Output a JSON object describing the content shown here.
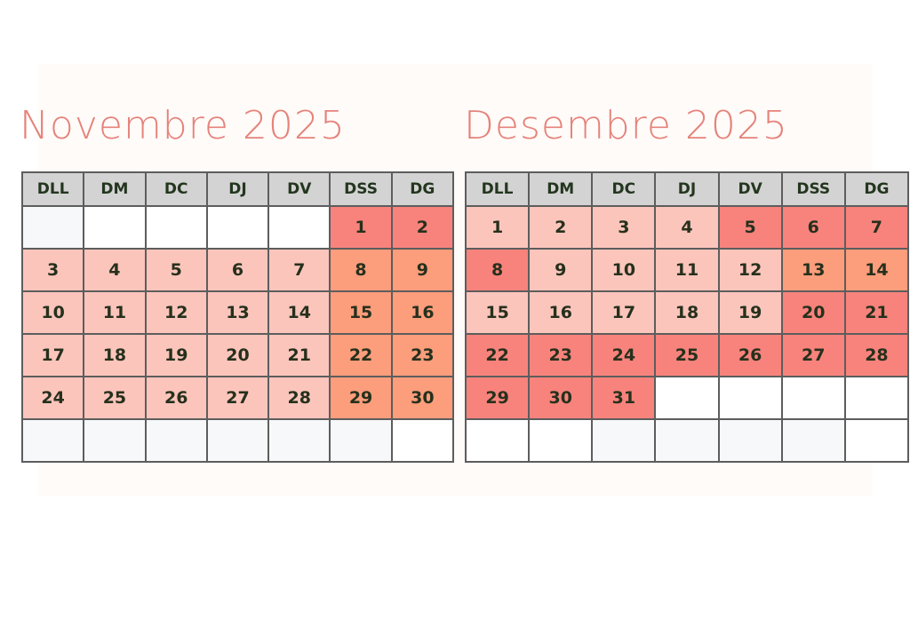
{
  "calendars": [
    {
      "title": "Novembre 2025",
      "weekdays": [
        "DLL",
        "DM",
        "DC",
        "DJ",
        "DV",
        "DSS",
        "DG"
      ],
      "weeks": [
        [
          {
            "day": "",
            "tone": "blank"
          },
          {
            "day": "",
            "tone": "empty"
          },
          {
            "day": "",
            "tone": "empty"
          },
          {
            "day": "",
            "tone": "empty"
          },
          {
            "day": "",
            "tone": "empty"
          },
          {
            "day": "1",
            "tone": "mid"
          },
          {
            "day": "2",
            "tone": "mid"
          }
        ],
        [
          {
            "day": "3",
            "tone": "light"
          },
          {
            "day": "4",
            "tone": "light"
          },
          {
            "day": "5",
            "tone": "light"
          },
          {
            "day": "6",
            "tone": "light"
          },
          {
            "day": "7",
            "tone": "light"
          },
          {
            "day": "8",
            "tone": "orange"
          },
          {
            "day": "9",
            "tone": "orange"
          }
        ],
        [
          {
            "day": "10",
            "tone": "light"
          },
          {
            "day": "11",
            "tone": "light"
          },
          {
            "day": "12",
            "tone": "light"
          },
          {
            "day": "13",
            "tone": "light"
          },
          {
            "day": "14",
            "tone": "light"
          },
          {
            "day": "15",
            "tone": "orange"
          },
          {
            "day": "16",
            "tone": "orange"
          }
        ],
        [
          {
            "day": "17",
            "tone": "light"
          },
          {
            "day": "18",
            "tone": "light"
          },
          {
            "day": "19",
            "tone": "light"
          },
          {
            "day": "20",
            "tone": "light"
          },
          {
            "day": "21",
            "tone": "light"
          },
          {
            "day": "22",
            "tone": "orange"
          },
          {
            "day": "23",
            "tone": "orange"
          }
        ],
        [
          {
            "day": "24",
            "tone": "light"
          },
          {
            "day": "25",
            "tone": "light"
          },
          {
            "day": "26",
            "tone": "light"
          },
          {
            "day": "27",
            "tone": "light"
          },
          {
            "day": "28",
            "tone": "light"
          },
          {
            "day": "29",
            "tone": "orange"
          },
          {
            "day": "30",
            "tone": "orange"
          }
        ],
        [
          {
            "day": "",
            "tone": "blank"
          },
          {
            "day": "",
            "tone": "blank"
          },
          {
            "day": "",
            "tone": "blank"
          },
          {
            "day": "",
            "tone": "blank"
          },
          {
            "day": "",
            "tone": "blank"
          },
          {
            "day": "",
            "tone": "blank"
          },
          {
            "day": "",
            "tone": "empty"
          }
        ]
      ]
    },
    {
      "title": "Desembre 2025",
      "weekdays": [
        "DLL",
        "DM",
        "DC",
        "DJ",
        "DV",
        "DSS",
        "DG"
      ],
      "weeks": [
        [
          {
            "day": "1",
            "tone": "light"
          },
          {
            "day": "2",
            "tone": "light"
          },
          {
            "day": "3",
            "tone": "light"
          },
          {
            "day": "4",
            "tone": "light"
          },
          {
            "day": "5",
            "tone": "mid"
          },
          {
            "day": "6",
            "tone": "mid"
          },
          {
            "day": "7",
            "tone": "mid"
          }
        ],
        [
          {
            "day": "8",
            "tone": "mid"
          },
          {
            "day": "9",
            "tone": "light"
          },
          {
            "day": "10",
            "tone": "light"
          },
          {
            "day": "11",
            "tone": "light"
          },
          {
            "day": "12",
            "tone": "light"
          },
          {
            "day": "13",
            "tone": "orange"
          },
          {
            "day": "14",
            "tone": "orange"
          }
        ],
        [
          {
            "day": "15",
            "tone": "light"
          },
          {
            "day": "16",
            "tone": "light"
          },
          {
            "day": "17",
            "tone": "light"
          },
          {
            "day": "18",
            "tone": "light"
          },
          {
            "day": "19",
            "tone": "light"
          },
          {
            "day": "20",
            "tone": "mid"
          },
          {
            "day": "21",
            "tone": "mid"
          }
        ],
        [
          {
            "day": "22",
            "tone": "mid"
          },
          {
            "day": "23",
            "tone": "mid"
          },
          {
            "day": "24",
            "tone": "mid"
          },
          {
            "day": "25",
            "tone": "mid"
          },
          {
            "day": "26",
            "tone": "mid"
          },
          {
            "day": "27",
            "tone": "mid"
          },
          {
            "day": "28",
            "tone": "mid"
          }
        ],
        [
          {
            "day": "29",
            "tone": "mid"
          },
          {
            "day": "30",
            "tone": "mid"
          },
          {
            "day": "31",
            "tone": "mid"
          },
          {
            "day": "",
            "tone": "empty"
          },
          {
            "day": "",
            "tone": "empty"
          },
          {
            "day": "",
            "tone": "empty"
          },
          {
            "day": "",
            "tone": "empty"
          }
        ],
        [
          {
            "day": "",
            "tone": "empty"
          },
          {
            "day": "",
            "tone": "empty"
          },
          {
            "day": "",
            "tone": "blank"
          },
          {
            "day": "",
            "tone": "blank"
          },
          {
            "day": "",
            "tone": "blank"
          },
          {
            "day": "",
            "tone": "blank"
          },
          {
            "day": "",
            "tone": "empty"
          }
        ]
      ]
    }
  ],
  "colors": {
    "title": "#e5837a",
    "header_bg": "#d3d3d3",
    "light": "#fcc5bc",
    "mid": "#f8837c",
    "orange": "#fc9d7c",
    "blank": "#f6f8fa",
    "empty": "#ffffff",
    "border": "#5d5d5d",
    "day_text": "#26301c"
  }
}
